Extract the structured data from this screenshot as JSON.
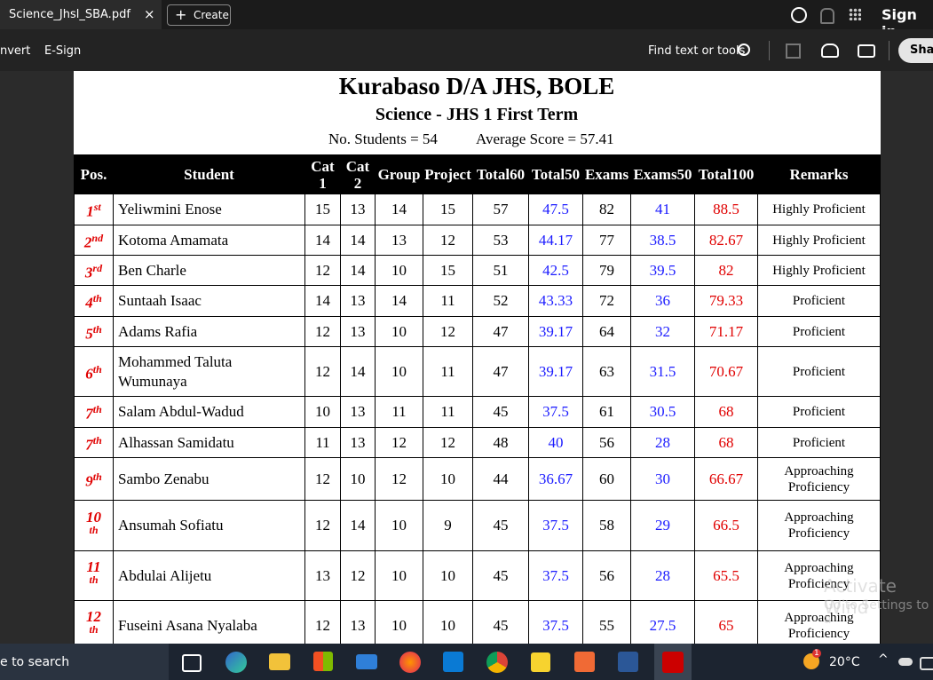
{
  "tab": {
    "title": "Science_Jhsl_SBA.pdf",
    "create": "Create"
  },
  "top_bar": {
    "sign_in": "Sign in"
  },
  "toolbar": {
    "items": [
      "nvert",
      "E-Sign"
    ],
    "find": "Find text or tools",
    "share": "Shar"
  },
  "document": {
    "title": "Kurabaso D/A JHS, BOLE",
    "subtitle": "Science - JHS 1 First Term",
    "students": "No. Students = 54",
    "average": "Average Score = 57.41",
    "table": {
      "columns": [
        "Pos.",
        "Student",
        "Cat 1",
        "Cat 2",
        "Group",
        "Project",
        "Total60",
        "Total50",
        "Exams",
        "Exams50",
        "Total100",
        "Remarks"
      ],
      "rows": [
        {
          "pos": "1",
          "suffix": "st",
          "student": "Yeliwmini Enose",
          "scores": [
            15,
            13,
            14,
            15,
            57,
            47.5,
            82,
            41,
            88.5
          ],
          "remarks": "Highly Proficient"
        },
        {
          "pos": "2",
          "suffix": "nd",
          "student": "Kotoma Amamata",
          "scores": [
            14,
            14,
            13,
            12,
            53,
            44.17,
            77,
            38.5,
            82.67
          ],
          "remarks": "Highly Proficient"
        },
        {
          "pos": "3",
          "suffix": "rd",
          "student": "Ben Charle",
          "scores": [
            12,
            14,
            10,
            15,
            51,
            42.5,
            79,
            39.5,
            82
          ],
          "remarks": "Highly Proficient"
        },
        {
          "pos": "4",
          "suffix": "th",
          "student": "Suntaah Isaac",
          "scores": [
            14,
            13,
            14,
            11,
            52,
            43.33,
            72,
            36,
            79.33
          ],
          "remarks": "Proficient"
        },
        {
          "pos": "5",
          "suffix": "th",
          "student": "Adams Rafia",
          "scores": [
            12,
            13,
            10,
            12,
            47,
            39.17,
            64,
            32,
            71.17
          ],
          "remarks": "Proficient"
        },
        {
          "pos": "6",
          "suffix": "th",
          "student": "Mohammed Taluta Wumunaya",
          "scores": [
            12,
            14,
            10,
            11,
            47,
            39.17,
            63,
            31.5,
            70.67
          ],
          "remarks": "Proficient"
        },
        {
          "pos": "7",
          "suffix": "th",
          "student": "Salam Abdul-Wadud",
          "scores": [
            10,
            13,
            11,
            11,
            45,
            37.5,
            61,
            30.5,
            68
          ],
          "remarks": "Proficient"
        },
        {
          "pos": "7",
          "suffix": "th",
          "student": "Alhassan Samidatu",
          "scores": [
            11,
            13,
            12,
            12,
            48,
            40,
            56,
            28,
            68
          ],
          "remarks": "Proficient"
        },
        {
          "pos": "9",
          "suffix": "th",
          "student": "Sambo Zenabu",
          "scores": [
            12,
            10,
            12,
            10,
            44,
            36.67,
            60,
            30,
            66.67
          ],
          "remarks": "Approaching Proficiency"
        },
        {
          "pos": "10",
          "suffix": "th",
          "student": "Ansumah Sofiatu",
          "scores": [
            12,
            14,
            10,
            9,
            45,
            37.5,
            58,
            29,
            66.5
          ],
          "remarks": "Approaching Proficiency"
        },
        {
          "pos": "11",
          "suffix": "th",
          "student": "Abdulai Alijetu",
          "scores": [
            13,
            12,
            10,
            10,
            45,
            37.5,
            56,
            28,
            65.5
          ],
          "remarks": "Approaching Proficiency"
        },
        {
          "pos": "12",
          "suffix": "th",
          "student": "Fuseini Asana Nyalaba",
          "scores": [
            12,
            13,
            10,
            10,
            45,
            37.5,
            55,
            27.5,
            65
          ],
          "remarks": "Approaching Proficiency"
        }
      ]
    }
  },
  "watermark": {
    "line1": "Activate Wind",
    "line2": "Go to Settings to a"
  },
  "taskbar": {
    "search": "e to search",
    "badge": "1",
    "temperature": "20°C"
  }
}
